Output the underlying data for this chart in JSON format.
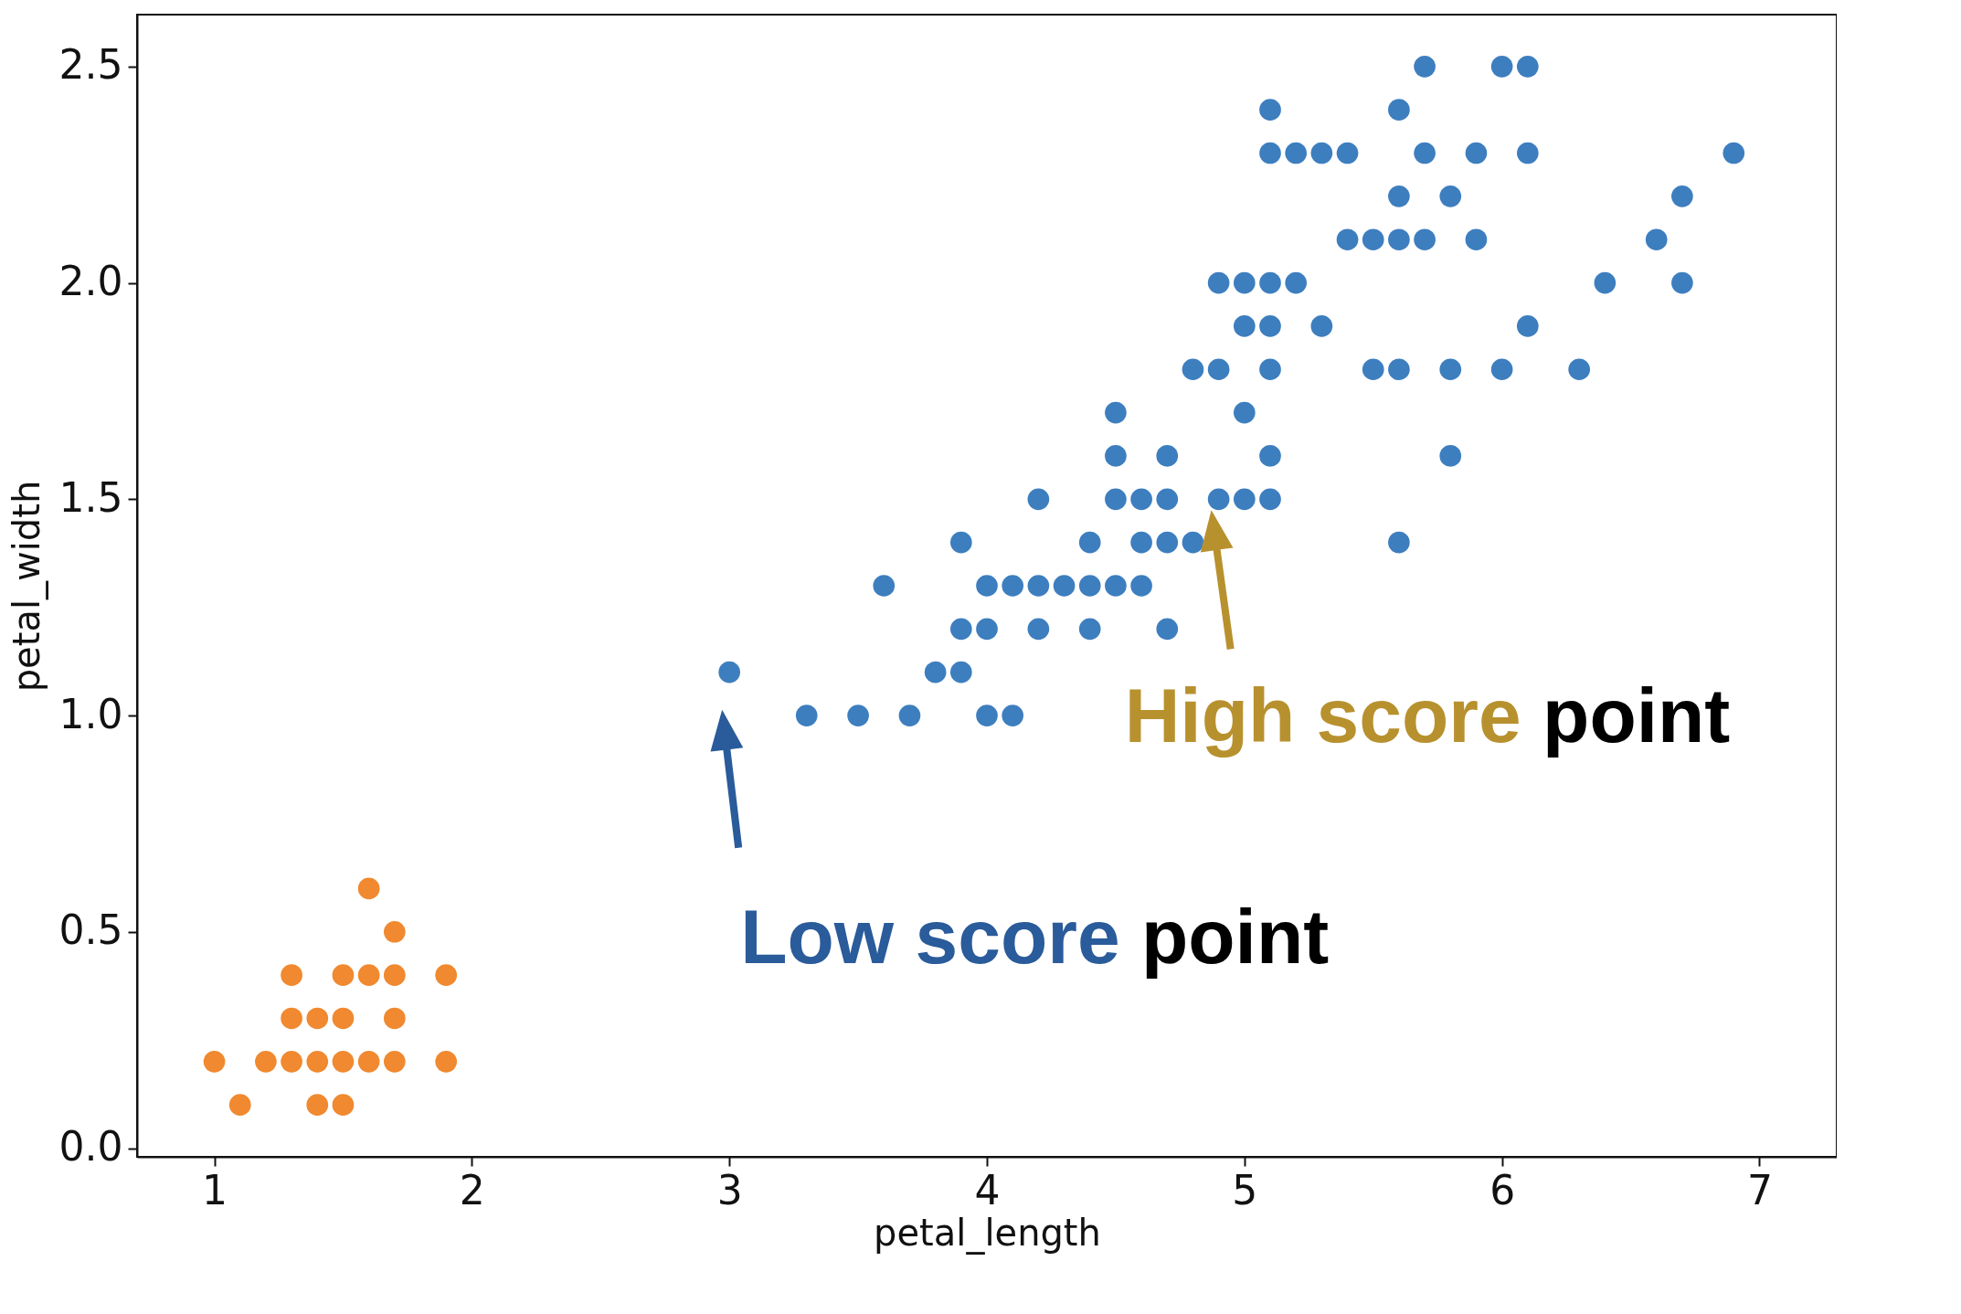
{
  "chart_data": {
    "type": "scatter",
    "xlabel": "petal_length",
    "ylabel": "petal_width",
    "xlim": [
      0.7,
      7.3
    ],
    "ylim": [
      -0.02,
      2.62
    ],
    "xticks": [
      1,
      2,
      3,
      4,
      5,
      6,
      7
    ],
    "yticks": [
      {
        "value": 0,
        "label": "0.0"
      },
      0.5,
      {
        "value": 1,
        "label": "1.0"
      },
      1.5,
      {
        "value": 2,
        "label": "2.0"
      },
      2.5
    ],
    "grid": false,
    "marker": "circle",
    "series": [
      {
        "color": "#f0892f",
        "x": [
          1.0,
          1.1,
          1.2,
          1.3,
          1.3,
          1.3,
          1.4,
          1.4,
          1.4,
          1.5,
          1.5,
          1.5,
          1.5,
          1.6,
          1.6,
          1.6,
          1.7,
          1.7,
          1.7,
          1.7,
          1.9,
          1.9
        ],
        "values": [
          0.2,
          0.1,
          0.2,
          0.2,
          0.3,
          0.4,
          0.1,
          0.2,
          0.3,
          0.1,
          0.2,
          0.3,
          0.4,
          0.2,
          0.4,
          0.6,
          0.2,
          0.3,
          0.4,
          0.5,
          0.2,
          0.4
        ]
      },
      {
        "color": "#3d7ebf",
        "x": [
          5.7,
          6.0,
          6.1,
          5.1,
          5.6,
          5.1,
          5.2,
          5.3,
          5.4,
          5.7,
          5.9,
          6.1,
          6.9,
          5.6,
          5.8,
          6.7,
          5.4,
          5.5,
          5.6,
          5.7,
          5.9,
          6.6,
          4.9,
          5.0,
          5.1,
          5.2,
          6.4,
          6.7,
          5.0,
          5.1,
          5.3,
          6.1,
          4.8,
          4.9,
          5.1,
          5.5,
          5.6,
          5.8,
          6.0,
          6.3,
          4.5,
          5.0,
          4.5,
          4.7,
          5.1,
          5.8,
          4.2,
          4.5,
          4.6,
          4.7,
          4.9,
          5.0,
          5.1,
          3.9,
          4.4,
          4.6,
          4.7,
          4.8,
          5.6,
          3.6,
          4.0,
          4.1,
          4.2,
          4.3,
          4.4,
          4.5,
          4.6,
          3.9,
          4.0,
          4.2,
          4.4,
          4.7,
          3.0,
          3.8,
          3.9,
          3.3,
          3.5,
          3.7,
          4.0,
          4.1
        ],
        "values": [
          2.5,
          2.5,
          2.5,
          2.4,
          2.4,
          2.3,
          2.3,
          2.3,
          2.3,
          2.3,
          2.3,
          2.3,
          2.3,
          2.2,
          2.2,
          2.2,
          2.1,
          2.1,
          2.1,
          2.1,
          2.1,
          2.1,
          2.0,
          2.0,
          2.0,
          2.0,
          2.0,
          2.0,
          1.9,
          1.9,
          1.9,
          1.9,
          1.8,
          1.8,
          1.8,
          1.8,
          1.8,
          1.8,
          1.8,
          1.8,
          1.7,
          1.7,
          1.6,
          1.6,
          1.6,
          1.6,
          1.5,
          1.5,
          1.5,
          1.5,
          1.5,
          1.5,
          1.5,
          1.4,
          1.4,
          1.4,
          1.4,
          1.4,
          1.4,
          1.3,
          1.3,
          1.3,
          1.3,
          1.3,
          1.3,
          1.3,
          1.3,
          1.2,
          1.2,
          1.2,
          1.2,
          1.2,
          1.1,
          1.1,
          1.1,
          1.0,
          1.0,
          1.0,
          1.0,
          1.0
        ]
      }
    ],
    "annotations": [
      {
        "text": "Low score point",
        "x": 3.0,
        "y": 1.1
      },
      {
        "text": "High score point",
        "x": 4.9,
        "y": 1.5
      }
    ]
  }
}
